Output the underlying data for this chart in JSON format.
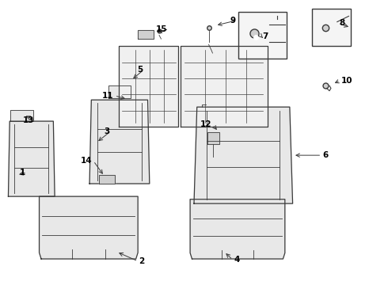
{
  "background_color": "#ffffff",
  "line_color": "#3a3a3a",
  "label_color": "#000000",
  "fill_light": "#e8e8e8",
  "fill_lighter": "#f0f0f0",
  "fill_dark": "#d0d0d0",
  "figure_width": 4.9,
  "figure_height": 3.6,
  "dpi": 100
}
